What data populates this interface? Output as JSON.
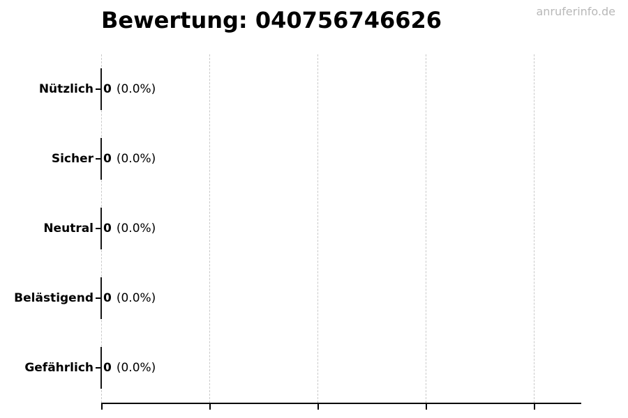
{
  "title": "Bewertung: 040756746626",
  "watermark": "anruferinfo.de",
  "colors": {
    "background": "#ffffff",
    "text": "#000000",
    "gridline": "#c9c9c9",
    "axis": "#000000",
    "watermark": "#b8b8b8"
  },
  "rows": [
    {
      "label": "Nützlich",
      "value": "0",
      "pct": "(0.0%)"
    },
    {
      "label": "Sicher",
      "value": "0",
      "pct": "(0.0%)"
    },
    {
      "label": "Neutral",
      "value": "0",
      "pct": "(0.0%)"
    },
    {
      "label": "Belästigend",
      "value": "0",
      "pct": "(0.0%)"
    },
    {
      "label": "Gefährlich",
      "value": "0",
      "pct": "(0.0%)"
    }
  ],
  "chart_data": {
    "type": "bar",
    "orientation": "horizontal",
    "title": "Bewertung: 040756746626",
    "categories": [
      "Nützlich",
      "Sicher",
      "Neutral",
      "Belästigend",
      "Gefährlich"
    ],
    "values": [
      0,
      0,
      0,
      0,
      0
    ],
    "percentages": [
      0.0,
      0.0,
      0.0,
      0.0,
      0.0
    ],
    "value_labels": [
      "0 (0.0%)",
      "0 (0.0%)",
      "0 (0.0%)",
      "0 (0.0%)",
      "0 (0.0%)"
    ],
    "xlabel": "",
    "ylabel": "",
    "x_tick_labels": [],
    "grid": {
      "vertical_gridlines": 5,
      "line_style": "dashed",
      "color": "#c9c9c9"
    },
    "legend": null,
    "annotation": "anruferinfo.de"
  }
}
